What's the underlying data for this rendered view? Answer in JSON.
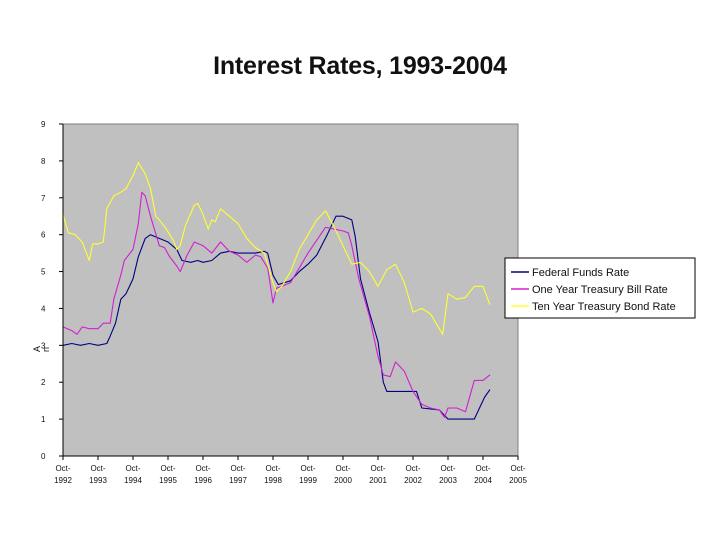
{
  "chart_data": {
    "type": "line",
    "title": "Interest Rates, 1993-2004",
    "ylabel": "A\nn",
    "xlabel": "",
    "ylim": [
      0,
      9
    ],
    "yticks": [
      "0",
      "1",
      "2",
      "3",
      "4",
      "5",
      "6",
      "7",
      "8",
      "9"
    ],
    "xlim": [
      1992.75,
      2005.75
    ],
    "xticks": [
      {
        "pos": 1992.75,
        "l1": "Oct-",
        "l2": "1992"
      },
      {
        "pos": 1993.75,
        "l1": "Oct-",
        "l2": "1993"
      },
      {
        "pos": 1994.75,
        "l1": "Oct-",
        "l2": "1994"
      },
      {
        "pos": 1995.75,
        "l1": "Oct-",
        "l2": "1995"
      },
      {
        "pos": 1996.75,
        "l1": "Oct-",
        "l2": "1996"
      },
      {
        "pos": 1997.75,
        "l1": "Oct-",
        "l2": "1997"
      },
      {
        "pos": 1998.75,
        "l1": "Oct-",
        "l2": "1998"
      },
      {
        "pos": 1999.75,
        "l1": "Oct-",
        "l2": "1999"
      },
      {
        "pos": 2000.75,
        "l1": "Oct-",
        "l2": "2000"
      },
      {
        "pos": 2001.75,
        "l1": "Oct-",
        "l2": "2001"
      },
      {
        "pos": 2002.75,
        "l1": "Oct-",
        "l2": "2002"
      },
      {
        "pos": 2003.75,
        "l1": "Oct-",
        "l2": "2003"
      },
      {
        "pos": 2004.75,
        "l1": "Oct-",
        "l2": "2004"
      },
      {
        "pos": 2005.75,
        "l1": "Oct-",
        "l2": "2005"
      }
    ],
    "legend_position": "right",
    "grid": false,
    "plot_background": "#c0c0c0",
    "series": [
      {
        "name": "Federal Funds Rate",
        "color": "#000080",
        "points": [
          [
            1992.75,
            3.0
          ],
          [
            1993.0,
            3.05
          ],
          [
            1993.25,
            3.0
          ],
          [
            1993.5,
            3.05
          ],
          [
            1993.75,
            3.0
          ],
          [
            1994.0,
            3.05
          ],
          [
            1994.1,
            3.25
          ],
          [
            1994.25,
            3.6
          ],
          [
            1994.4,
            4.25
          ],
          [
            1994.55,
            4.4
          ],
          [
            1994.75,
            4.8
          ],
          [
            1994.9,
            5.4
          ],
          [
            1995.1,
            5.9
          ],
          [
            1995.25,
            6.0
          ],
          [
            1995.5,
            5.9
          ],
          [
            1995.75,
            5.8
          ],
          [
            1996.0,
            5.6
          ],
          [
            1996.15,
            5.3
          ],
          [
            1996.4,
            5.25
          ],
          [
            1996.6,
            5.3
          ],
          [
            1996.75,
            5.25
          ],
          [
            1997.0,
            5.3
          ],
          [
            1997.25,
            5.5
          ],
          [
            1997.5,
            5.55
          ],
          [
            1997.75,
            5.5
          ],
          [
            1998.0,
            5.5
          ],
          [
            1998.25,
            5.5
          ],
          [
            1998.5,
            5.55
          ],
          [
            1998.6,
            5.5
          ],
          [
            1998.75,
            4.9
          ],
          [
            1998.9,
            4.65
          ],
          [
            1999.25,
            4.75
          ],
          [
            1999.5,
            5.0
          ],
          [
            1999.75,
            5.2
          ],
          [
            2000.0,
            5.45
          ],
          [
            2000.3,
            6.0
          ],
          [
            2000.55,
            6.5
          ],
          [
            2000.75,
            6.5
          ],
          [
            2001.0,
            6.4
          ],
          [
            2001.1,
            5.95
          ],
          [
            2001.25,
            4.8
          ],
          [
            2001.5,
            3.9
          ],
          [
            2001.75,
            3.1
          ],
          [
            2001.9,
            2.0
          ],
          [
            2002.0,
            1.75
          ],
          [
            2002.5,
            1.75
          ],
          [
            2002.85,
            1.75
          ],
          [
            2003.0,
            1.3
          ],
          [
            2003.5,
            1.25
          ],
          [
            2003.75,
            1.0
          ],
          [
            2004.0,
            1.0
          ],
          [
            2004.25,
            1.0
          ],
          [
            2004.5,
            1.0
          ],
          [
            2004.65,
            1.3
          ],
          [
            2004.8,
            1.6
          ],
          [
            2004.95,
            1.8
          ]
        ]
      },
      {
        "name": "One Year Treasury Bill Rate",
        "color": "#d020d0",
        "points": [
          [
            1992.75,
            3.5
          ],
          [
            1993.0,
            3.4
          ],
          [
            1993.15,
            3.3
          ],
          [
            1993.3,
            3.5
          ],
          [
            1993.5,
            3.45
          ],
          [
            1993.75,
            3.45
          ],
          [
            1993.9,
            3.6
          ],
          [
            1994.1,
            3.6
          ],
          [
            1994.2,
            4.25
          ],
          [
            1994.4,
            4.9
          ],
          [
            1994.5,
            5.3
          ],
          [
            1994.75,
            5.6
          ],
          [
            1994.9,
            6.3
          ],
          [
            1995.0,
            7.15
          ],
          [
            1995.1,
            7.05
          ],
          [
            1995.25,
            6.5
          ],
          [
            1995.5,
            5.7
          ],
          [
            1995.65,
            5.65
          ],
          [
            1995.8,
            5.4
          ],
          [
            1996.0,
            5.15
          ],
          [
            1996.1,
            5.0
          ],
          [
            1996.3,
            5.45
          ],
          [
            1996.5,
            5.8
          ],
          [
            1996.75,
            5.7
          ],
          [
            1997.0,
            5.5
          ],
          [
            1997.25,
            5.8
          ],
          [
            1997.5,
            5.55
          ],
          [
            1997.75,
            5.45
          ],
          [
            1998.0,
            5.25
          ],
          [
            1998.25,
            5.45
          ],
          [
            1998.4,
            5.4
          ],
          [
            1998.6,
            5.1
          ],
          [
            1998.75,
            4.15
          ],
          [
            1998.85,
            4.55
          ],
          [
            1999.0,
            4.6
          ],
          [
            1999.25,
            4.7
          ],
          [
            1999.5,
            5.1
          ],
          [
            1999.75,
            5.5
          ],
          [
            2000.0,
            5.85
          ],
          [
            2000.25,
            6.2
          ],
          [
            2000.5,
            6.15
          ],
          [
            2000.75,
            6.1
          ],
          [
            2000.9,
            6.05
          ],
          [
            2001.0,
            5.7
          ],
          [
            2001.2,
            4.8
          ],
          [
            2001.5,
            3.8
          ],
          [
            2001.75,
            2.7
          ],
          [
            2001.9,
            2.2
          ],
          [
            2002.1,
            2.15
          ],
          [
            2002.25,
            2.55
          ],
          [
            2002.5,
            2.3
          ],
          [
            2002.75,
            1.75
          ],
          [
            2003.0,
            1.4
          ],
          [
            2003.25,
            1.3
          ],
          [
            2003.5,
            1.25
          ],
          [
            2003.65,
            1.05
          ],
          [
            2003.75,
            1.3
          ],
          [
            2004.0,
            1.3
          ],
          [
            2004.25,
            1.2
          ],
          [
            2004.5,
            2.05
          ],
          [
            2004.75,
            2.05
          ],
          [
            2004.95,
            2.2
          ]
        ]
      },
      {
        "name": "Ten Year Treasury Bond Rate",
        "color": "#ffff33",
        "points": [
          [
            1992.75,
            6.55
          ],
          [
            1992.9,
            6.05
          ],
          [
            1993.1,
            6.0
          ],
          [
            1993.3,
            5.8
          ],
          [
            1993.5,
            5.3
          ],
          [
            1993.6,
            5.75
          ],
          [
            1993.75,
            5.75
          ],
          [
            1993.9,
            5.8
          ],
          [
            1994.0,
            6.7
          ],
          [
            1994.2,
            7.05
          ],
          [
            1994.4,
            7.15
          ],
          [
            1994.55,
            7.25
          ],
          [
            1994.75,
            7.6
          ],
          [
            1994.9,
            7.95
          ],
          [
            1995.1,
            7.65
          ],
          [
            1995.25,
            7.25
          ],
          [
            1995.4,
            6.5
          ],
          [
            1995.5,
            6.4
          ],
          [
            1995.7,
            6.15
          ],
          [
            1995.9,
            5.85
          ],
          [
            1996.0,
            5.6
          ],
          [
            1996.1,
            5.7
          ],
          [
            1996.25,
            6.25
          ],
          [
            1996.5,
            6.8
          ],
          [
            1996.6,
            6.85
          ],
          [
            1996.75,
            6.55
          ],
          [
            1996.9,
            6.15
          ],
          [
            1997.0,
            6.4
          ],
          [
            1997.1,
            6.35
          ],
          [
            1997.25,
            6.7
          ],
          [
            1997.5,
            6.5
          ],
          [
            1997.75,
            6.3
          ],
          [
            1998.0,
            5.9
          ],
          [
            1998.25,
            5.65
          ],
          [
            1998.5,
            5.5
          ],
          [
            1998.75,
            4.7
          ],
          [
            1998.85,
            4.45
          ],
          [
            1999.0,
            4.6
          ],
          [
            1999.25,
            5.0
          ],
          [
            1999.5,
            5.6
          ],
          [
            1999.75,
            6.0
          ],
          [
            2000.0,
            6.4
          ],
          [
            2000.25,
            6.65
          ],
          [
            2000.5,
            6.2
          ],
          [
            2000.75,
            5.7
          ],
          [
            2001.0,
            5.2
          ],
          [
            2001.25,
            5.25
          ],
          [
            2001.5,
            5.0
          ],
          [
            2001.75,
            4.6
          ],
          [
            2002.0,
            5.05
          ],
          [
            2002.25,
            5.2
          ],
          [
            2002.5,
            4.7
          ],
          [
            2002.75,
            3.9
          ],
          [
            2003.0,
            4.0
          ],
          [
            2003.25,
            3.85
          ],
          [
            2003.5,
            3.45
          ],
          [
            2003.6,
            3.3
          ],
          [
            2003.75,
            4.4
          ],
          [
            2004.0,
            4.25
          ],
          [
            2004.25,
            4.3
          ],
          [
            2004.5,
            4.6
          ],
          [
            2004.75,
            4.6
          ],
          [
            2004.95,
            4.1
          ]
        ]
      }
    ]
  }
}
